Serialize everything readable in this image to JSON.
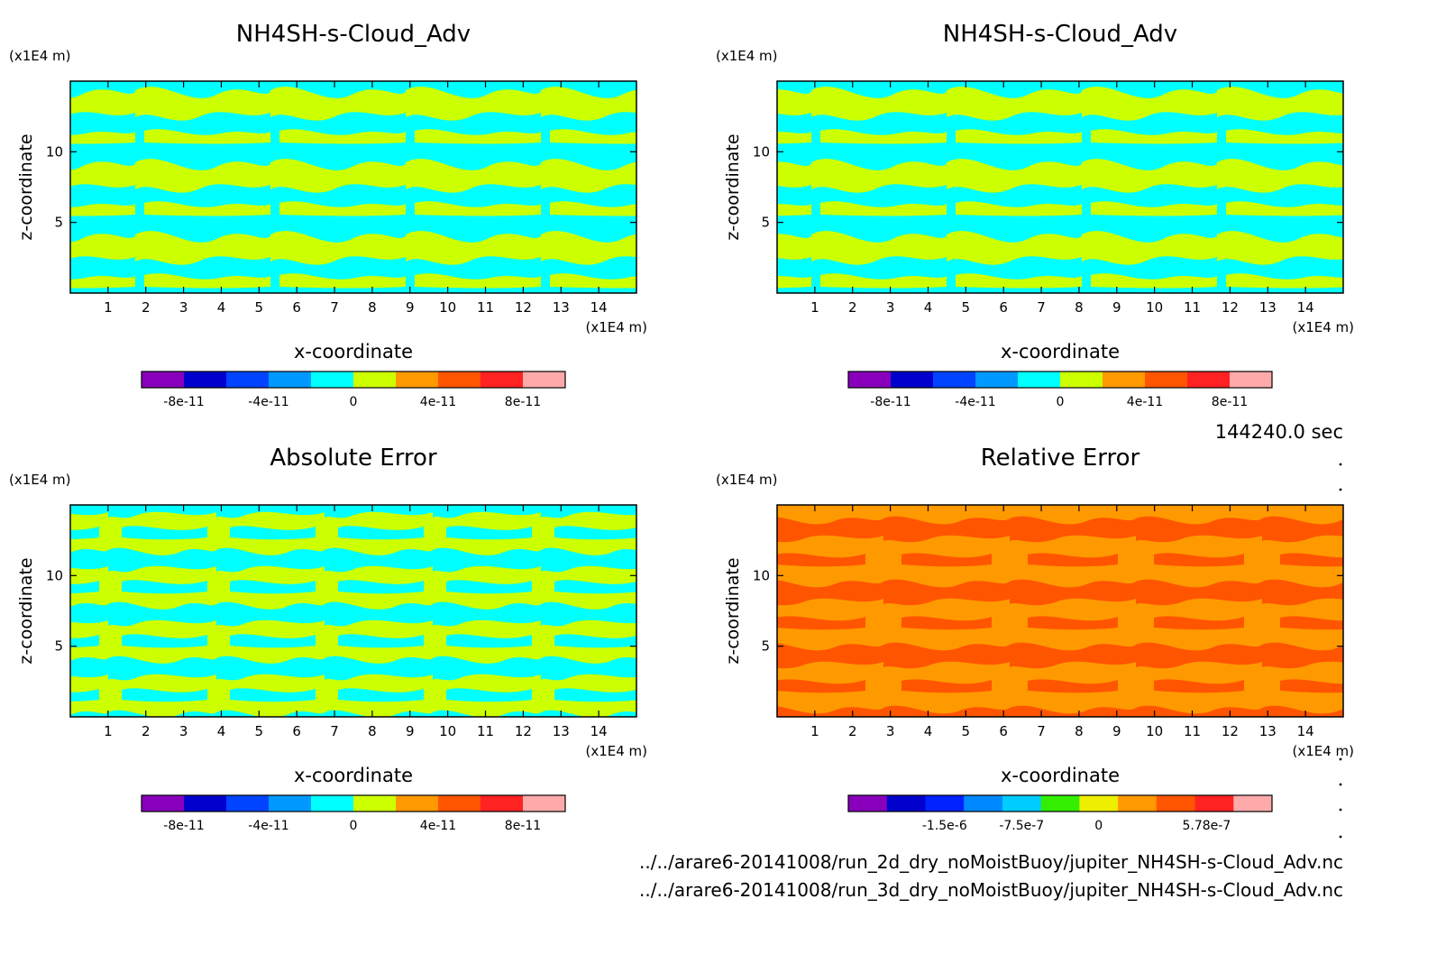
{
  "palette": {
    "cyan": "#00ffff",
    "yellow_green": "#ccff00",
    "orange": "#ff9900",
    "red_orange": "#ff5500",
    "axis_color": "#000000"
  },
  "chart_data": [
    {
      "type": "heatmap",
      "title": "NH4SH-s-Cloud_Adv",
      "xlabel": "x-coordinate",
      "ylabel": "z-coordinate",
      "x_unit": "(x1E4 m)",
      "y_unit": "(x1E4 m)",
      "xlim": [
        0,
        15
      ],
      "ylim": [
        0,
        15
      ],
      "x_ticks": [
        "1",
        "2",
        "3",
        "4",
        "5",
        "6",
        "7",
        "8",
        "9",
        "10",
        "11",
        "12",
        "13",
        "14"
      ],
      "y_ticks": [
        "5",
        "10"
      ],
      "field_levels": [
        "0",
        "4e-11"
      ],
      "colorbar": {
        "colors": [
          "#8800bb",
          "#0000cc",
          "#0044ff",
          "#0099ff",
          "#00ffff",
          "#ccff00",
          "#ff9900",
          "#ff5500",
          "#ff2222",
          "#ffaaaa"
        ],
        "tick_labels": [
          "-8e-11",
          "-4e-11",
          "0",
          "4e-11",
          "8e-11"
        ]
      }
    },
    {
      "type": "heatmap",
      "title": "NH4SH-s-Cloud_Adv",
      "xlabel": "x-coordinate",
      "ylabel": "z-coordinate",
      "x_unit": "(x1E4 m)",
      "y_unit": "(x1E4 m)",
      "xlim": [
        0,
        15
      ],
      "ylim": [
        0,
        15
      ],
      "x_ticks": [
        "1",
        "2",
        "3",
        "4",
        "5",
        "6",
        "7",
        "8",
        "9",
        "10",
        "11",
        "12",
        "13",
        "14"
      ],
      "y_ticks": [
        "5",
        "10"
      ],
      "field_levels": [
        "0",
        "4e-11"
      ],
      "colorbar": {
        "colors": [
          "#8800bb",
          "#0000cc",
          "#0044ff",
          "#0099ff",
          "#00ffff",
          "#ccff00",
          "#ff9900",
          "#ff5500",
          "#ff2222",
          "#ffaaaa"
        ],
        "tick_labels": [
          "-8e-11",
          "-4e-11",
          "0",
          "4e-11",
          "8e-11"
        ]
      }
    },
    {
      "type": "heatmap",
      "title": "Absolute Error",
      "xlabel": "x-coordinate",
      "ylabel": "z-coordinate",
      "x_unit": "(x1E4 m)",
      "y_unit": "(x1E4 m)",
      "xlim": [
        0,
        15
      ],
      "ylim": [
        0,
        15
      ],
      "x_ticks": [
        "1",
        "2",
        "3",
        "4",
        "5",
        "6",
        "7",
        "8",
        "9",
        "10",
        "11",
        "12",
        "13",
        "14"
      ],
      "y_ticks": [
        "5",
        "10"
      ],
      "field_levels": [
        "0",
        "4e-11"
      ],
      "colorbar": {
        "colors": [
          "#8800bb",
          "#0000cc",
          "#0044ff",
          "#0099ff",
          "#00ffff",
          "#ccff00",
          "#ff9900",
          "#ff5500",
          "#ff2222",
          "#ffaaaa"
        ],
        "tick_labels": [
          "-8e-11",
          "-4e-11",
          "0",
          "4e-11",
          "8e-11"
        ]
      }
    },
    {
      "type": "heatmap",
      "title": "Relative Error",
      "xlabel": "x-coordinate",
      "ylabel": "z-coordinate",
      "x_unit": "(x1E4 m)",
      "y_unit": "(x1E4 m)",
      "xlim": [
        0,
        15
      ],
      "ylim": [
        0,
        15
      ],
      "x_ticks": [
        "1",
        "2",
        "3",
        "4",
        "5",
        "6",
        "7",
        "8",
        "9",
        "10",
        "11",
        "12",
        "13",
        "14"
      ],
      "y_ticks": [
        "5",
        "10"
      ],
      "field_levels": [
        "0",
        "5.78e-7"
      ],
      "colorbar": {
        "colors": [
          "#8800bb",
          "#0000cc",
          "#0022ff",
          "#0088ff",
          "#00ccff",
          "#33ee00",
          "#eeee00",
          "#ff9900",
          "#ff5500",
          "#ff2222",
          "#ffaaaa"
        ],
        "tick_labels": [
          "-1.5e-6",
          "-7.5e-7",
          "0",
          "5.78e-7"
        ]
      }
    }
  ],
  "time_label": "144240.0 sec",
  "file_paths": [
    "../../arare6-20141008/run_2d_dry_noMoistBuoy/jupiter_NH4SH-s-Cloud_Adv.nc",
    "../../arare6-20141008/run_3d_dry_noMoistBuoy/jupiter_NH4SH-s-Cloud_Adv.nc"
  ]
}
